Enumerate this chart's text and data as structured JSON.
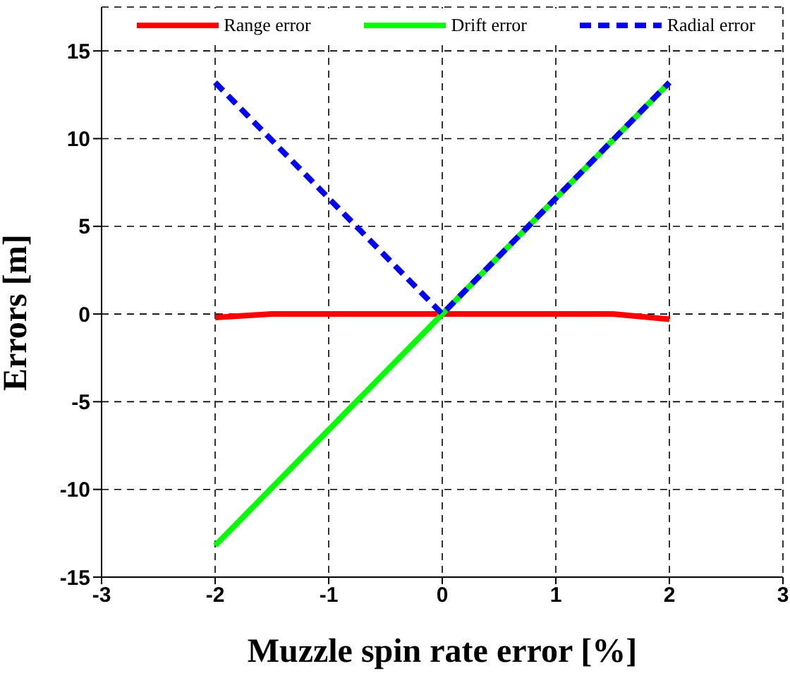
{
  "chart_data": {
    "type": "line",
    "xlabel": "Muzzle spin rate error [%]",
    "ylabel": "Errors [m]",
    "xlim": [
      -3,
      3
    ],
    "xticks": [
      -3,
      -2,
      -1,
      0,
      1,
      2,
      3
    ],
    "ylim": [
      -15,
      17.5
    ],
    "yticks": [
      -15,
      -10,
      -5,
      0,
      5,
      10,
      15
    ],
    "grid": true,
    "legend": "top",
    "marker": "none",
    "series": [
      {
        "name": "Range error",
        "color": "#ff0000",
        "line_style": "solid",
        "x": [
          -2,
          -1.5,
          -1,
          0,
          1,
          1.5,
          2
        ],
        "values": [
          -0.2,
          0,
          0,
          0,
          0,
          0,
          -0.3
        ]
      },
      {
        "name": "Drift error",
        "color": "#00ff00",
        "line_style": "solid",
        "x": [
          -2,
          -1,
          0,
          1,
          2
        ],
        "values": [
          -13.2,
          -6.6,
          0,
          6.6,
          13.2
        ]
      },
      {
        "name": "Radial error",
        "color": "#0000ff",
        "line_style": "dashed",
        "x": [
          -2,
          -1,
          0,
          1,
          2
        ],
        "values": [
          13.2,
          6.6,
          0,
          6.6,
          13.2
        ]
      }
    ]
  }
}
